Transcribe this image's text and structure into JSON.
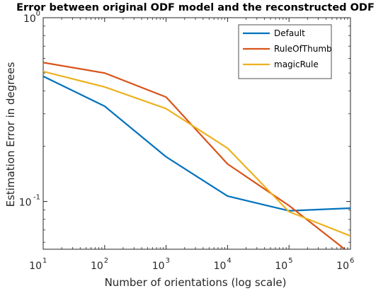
{
  "chart_data": {
    "type": "line",
    "title": "Error between original ODF model and the reconstructed ODF",
    "xlabel": "Number of orientations (log scale)",
    "ylabel": "Estimation Error in degrees",
    "xscale": "log",
    "yscale": "log",
    "xlim": [
      10,
      1000000
    ],
    "ylim": [
      0.055,
      1
    ],
    "xticks": [
      {
        "base": "10",
        "exp": "1",
        "value": 10
      },
      {
        "base": "10",
        "exp": "2",
        "value": 100
      },
      {
        "base": "10",
        "exp": "3",
        "value": 1000
      },
      {
        "base": "10",
        "exp": "4",
        "value": 10000
      },
      {
        "base": "10",
        "exp": "5",
        "value": 100000
      },
      {
        "base": "10",
        "exp": "6",
        "value": 1000000
      }
    ],
    "yticks": [
      {
        "base": "10",
        "exp": "0",
        "value": 1
      },
      {
        "base": "10",
        "exp": "-1",
        "value": 0.1
      }
    ],
    "x": [
      10,
      100,
      1000,
      10000,
      100000,
      1000000
    ],
    "series": [
      {
        "name": "Default",
        "color": "#0072BD",
        "values": [
          0.48,
          0.33,
          0.175,
          0.107,
          0.089,
          0.092
        ]
      },
      {
        "name": "RuleOfThumb",
        "color": "#D95319",
        "values": [
          0.57,
          0.5,
          0.37,
          0.16,
          0.095,
          0.052
        ]
      },
      {
        "name": "magicRule",
        "color": "#EDB120",
        "values": [
          0.51,
          0.42,
          0.32,
          0.195,
          0.088,
          0.065
        ]
      }
    ],
    "grid": false,
    "legend_position": "top-right"
  }
}
